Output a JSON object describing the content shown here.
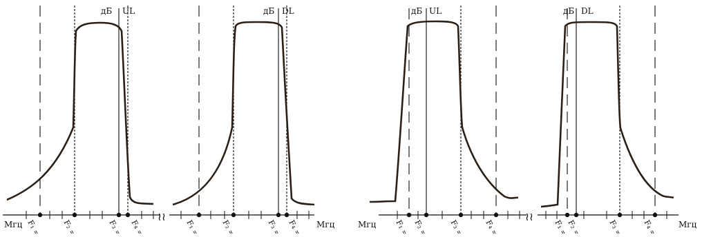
{
  "text": {
    "db": "дБ",
    "ul": "UL",
    "dl": "DL",
    "mhz": "Мгц",
    "break_symbol": "≀≀",
    "f_labels": [
      "F₁ = 0",
      "F₂ = 0",
      "F₃ = 0",
      "F₄ = 0"
    ]
  },
  "colors": {
    "curve": "#2b2018",
    "axis": "#111111",
    "guide": "#222222",
    "label": "#111111",
    "background": "#ffffff"
  }
}
